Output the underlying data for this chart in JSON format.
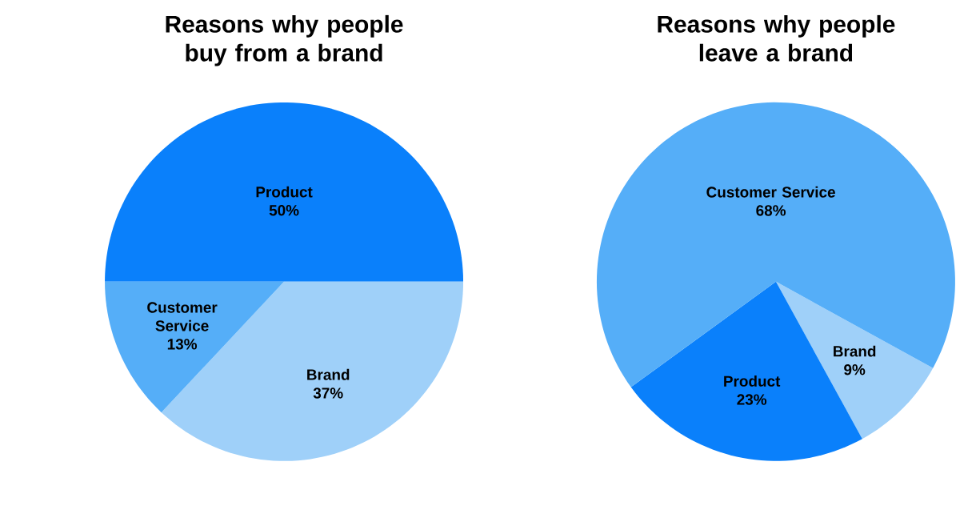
{
  "chart_data": [
    {
      "type": "pie",
      "title": "Reasons why people buy from a brand",
      "categories": [
        "Product",
        "Brand",
        "Customer Service"
      ],
      "values": [
        50,
        37,
        13
      ],
      "colors": [
        "#0a80fb",
        "#9fd0f9",
        "#55aef8"
      ],
      "value_labels": [
        "50%",
        "37%",
        "13%"
      ]
    },
    {
      "type": "pie",
      "title": "Reasons why people leave a brand",
      "categories": [
        "Brand",
        "Product",
        "Customer Service"
      ],
      "values": [
        9,
        23,
        68
      ],
      "colors": [
        "#9fd0f9",
        "#0a80fb",
        "#55aef8"
      ],
      "value_labels": [
        "9%",
        "23%",
        "68%"
      ]
    }
  ]
}
